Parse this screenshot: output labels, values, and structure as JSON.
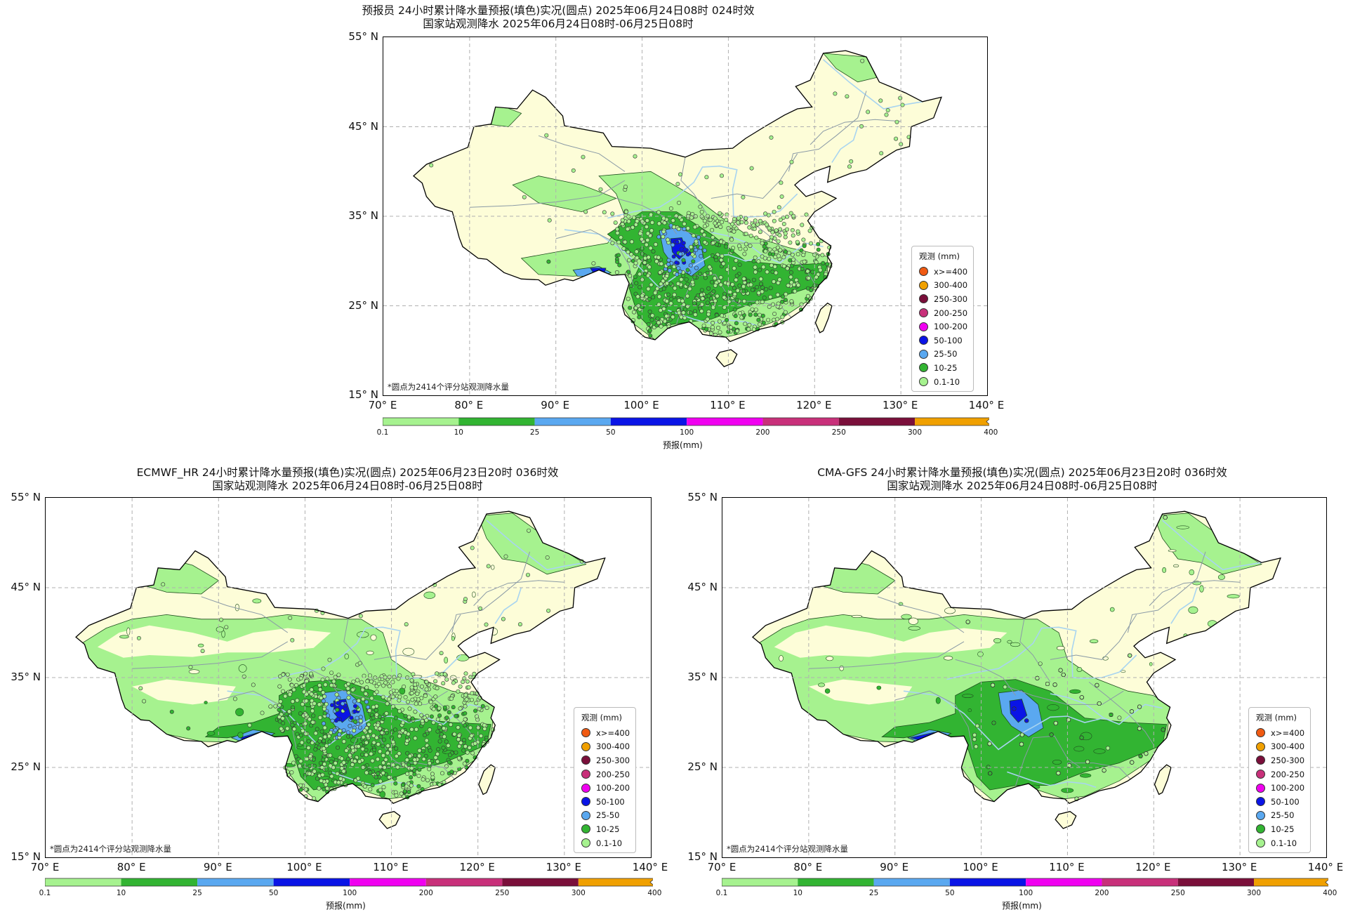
{
  "panels": [
    {
      "title_line1": "预报员 24小时累计降水量预报(填色)实况(圆点) 2025年06月24日08时 024时效",
      "title_line2": "国家站观测降水 2025年06月24日08时-06月25日08时"
    },
    {
      "title_line1": "ECMWF_HR 24小时累计降水量预报(填色)实况(圆点) 2025年06月23日20时 036时效",
      "title_line2": "国家站观测降水 2025年06月24日08时-06月25日08时"
    },
    {
      "title_line1": "CMA-GFS 24小时累计降水量预报(填色)实况(圆点) 2025年06月23日20时 036时效",
      "title_line2": "国家站观测降水 2025年06月24日08时-06月25日08时"
    }
  ],
  "axes": {
    "lat_labels": [
      "55° N",
      "45° N",
      "35° N",
      "25° N",
      "15° N"
    ],
    "lon_labels": [
      "70° E",
      "80° E",
      "90° E",
      "100° E",
      "110° E",
      "120° E",
      "130° E",
      "140° E"
    ]
  },
  "footnote": "*圆点为2414个评分站观测降水量",
  "legend": {
    "title": "观测 (mm)",
    "items": [
      {
        "label": "x>=400",
        "color": "#f05a12"
      },
      {
        "label": "300-400",
        "color": "#f0a000"
      },
      {
        "label": "250-300",
        "color": "#7a0f3a"
      },
      {
        "label": "200-250",
        "color": "#c8307a"
      },
      {
        "label": "100-200",
        "color": "#f000f0"
      },
      {
        "label": "50-100",
        "color": "#0a14e6"
      },
      {
        "label": "25-50",
        "color": "#5aa8f0"
      },
      {
        "label": "10-25",
        "color": "#32b432"
      },
      {
        "label": "0.1-10",
        "color": "#a6f28f"
      }
    ]
  },
  "colorbar": {
    "ticks": [
      "0.1",
      "10",
      "25",
      "50",
      "100",
      "200",
      "250",
      "300",
      "400"
    ],
    "colors": [
      "#a6f28f",
      "#32b432",
      "#5aa8f0",
      "#0a14e6",
      "#f000f0",
      "#c8307a",
      "#7a0f3a",
      "#f0a000"
    ],
    "label": "预报(mm)"
  },
  "colors": {
    "land": "#fdfdd8",
    "rain_light": "#a6f28f",
    "rain_moderate": "#32b432",
    "rain_heavy": "#5aa8f0",
    "rain_storm": "#0a14e6",
    "river": "#a8d4f0",
    "border": "#000000",
    "province": "#8a9aa6",
    "grid": "#b0b0b0"
  }
}
